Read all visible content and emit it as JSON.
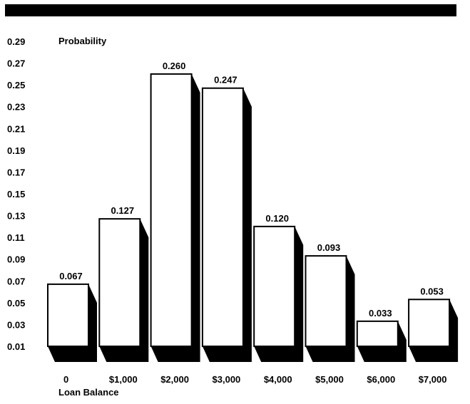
{
  "chart_data": {
    "type": "bar",
    "ylabel": "Probability",
    "xlabel": "Loan Balance",
    "categories": [
      "0",
      "$1,000",
      "$2,000",
      "$3,000",
      "$4,000",
      "$5,000",
      "$6,000",
      "$7,000"
    ],
    "values": [
      0.067,
      0.127,
      0.26,
      0.247,
      0.12,
      0.093,
      0.033,
      0.053
    ],
    "data_labels": [
      "0.067",
      "0.127",
      "0.260",
      "0.247",
      "0.120",
      "0.093",
      "0.033",
      "0.053"
    ],
    "y_ticks": [
      "0.29",
      "0.27",
      "0.25",
      "0.23",
      "0.21",
      "0.19",
      "0.17",
      "0.15",
      "0.13",
      "0.11",
      "0.09",
      "0.07",
      "0.05",
      "0.03",
      "0.01"
    ],
    "ylim": [
      0.01,
      0.29
    ],
    "grid": false,
    "legend": "none",
    "style": "3d-shadow",
    "colors": {
      "bar_face": "#ffffff",
      "bar_outline": "#000000",
      "shadow": "#000000",
      "header_bar": "#000000"
    }
  }
}
